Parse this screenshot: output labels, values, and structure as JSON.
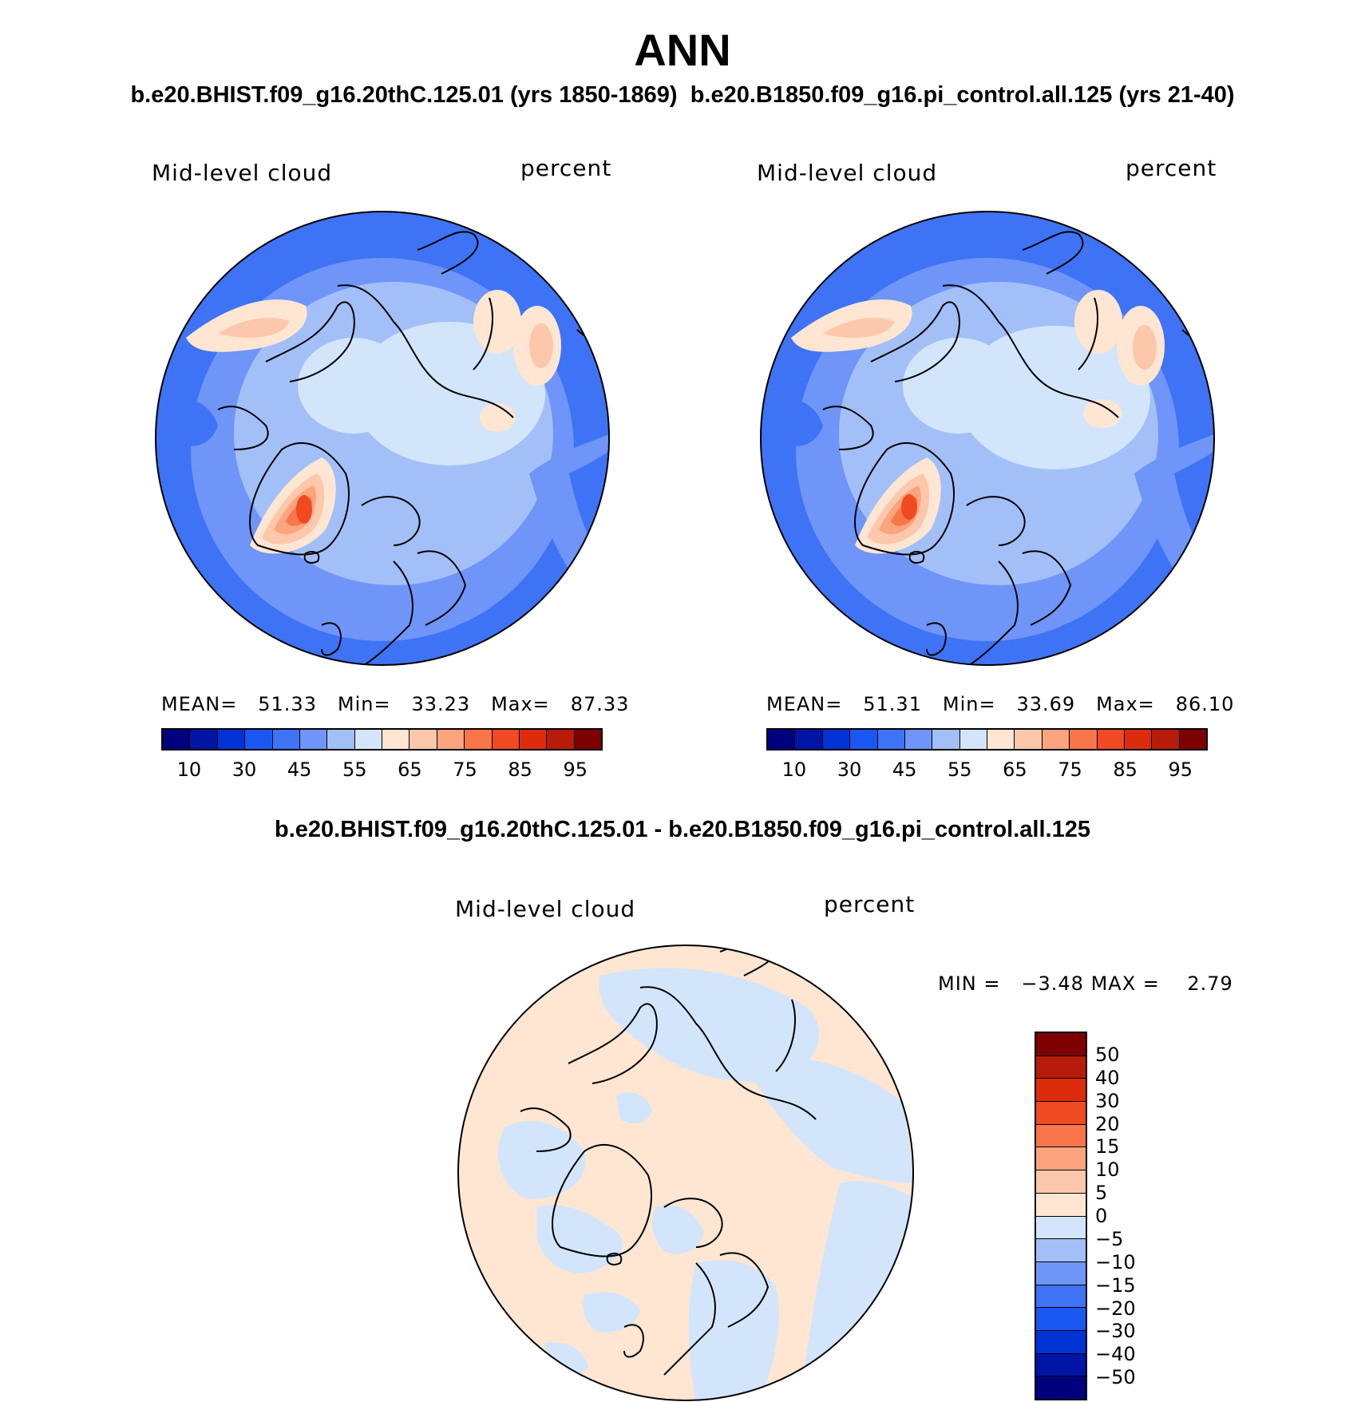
{
  "header": {
    "title": "ANN",
    "subtitle_left": "b.e20.BHIST.f09_g16.20thC.125.01 (yrs 1850-1869)",
    "subtitle_right": "b.e20.B1850.f09_g16.pi_control.all.125 (yrs 21-40)"
  },
  "panels": [
    {
      "variable": "Mid-level cloud",
      "units": "percent",
      "stats": {
        "mean_label": "MEAN=",
        "mean": "51.33",
        "min_label": "Min=",
        "min": "33.23",
        "max_label": "Max=",
        "max": "87.33"
      }
    },
    {
      "variable": "Mid-level cloud",
      "units": "percent",
      "stats": {
        "mean_label": "MEAN=",
        "mean": "51.31",
        "min_label": "Min=",
        "min": "33.69",
        "max_label": "Max=",
        "max": "86.10"
      }
    }
  ],
  "diff_panel": {
    "title": "b.e20.BHIST.f09_g16.20thC.125.01 - b.e20.B1850.f09_g16.pi_control.all.125",
    "variable": "Mid-level cloud",
    "units": "percent",
    "min_label": "MIN =",
    "min": "−3.48",
    "max_label": "MAX =",
    "max": "2.79"
  },
  "abs_colorbar": {
    "colors": [
      "#00007f",
      "#0014a6",
      "#0032d6",
      "#1a56f0",
      "#3f73f5",
      "#6e95f7",
      "#a3bff8",
      "#d3e5fa",
      "#fee6d2",
      "#fdc7ab",
      "#fba47e",
      "#f8764a",
      "#f04a23",
      "#dd2c0c",
      "#b71c0a",
      "#7f0000"
    ],
    "tick_labels": [
      "10",
      "30",
      "45",
      "55",
      "65",
      "75",
      "85",
      "95"
    ]
  },
  "diff_colorbar": {
    "colors": [
      "#7f0000",
      "#b71c0a",
      "#dd2c0c",
      "#f04a23",
      "#f8764a",
      "#fba47e",
      "#fdc7ab",
      "#fee6d2",
      "#d3e5fa",
      "#a3bff8",
      "#6e95f7",
      "#3f73f5",
      "#1a56f0",
      "#0032d6",
      "#0014a6",
      "#00007f"
    ],
    "tick_labels": [
      "50",
      "40",
      "30",
      "20",
      "15",
      "10",
      "5",
      "0",
      "−5",
      "−10",
      "−15",
      "−20",
      "−30",
      "−40",
      "−50"
    ]
  }
}
